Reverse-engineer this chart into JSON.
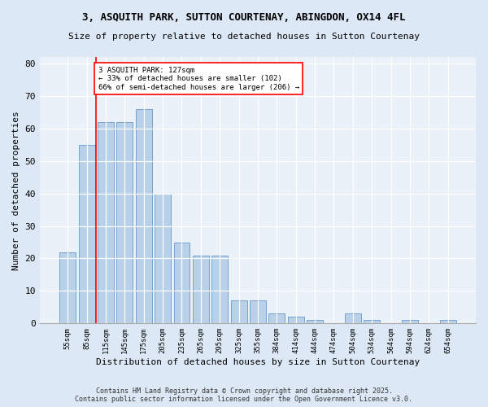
{
  "title1": "3, ASQUITH PARK, SUTTON COURTENAY, ABINGDON, OX14 4FL",
  "title2": "Size of property relative to detached houses in Sutton Courtenay",
  "xlabel": "Distribution of detached houses by size in Sutton Courtenay",
  "ylabel": "Number of detached properties",
  "categories": [
    "55sqm",
    "85sqm",
    "115sqm",
    "145sqm",
    "175sqm",
    "205sqm",
    "235sqm",
    "265sqm",
    "295sqm",
    "325sqm",
    "355sqm",
    "384sqm",
    "414sqm",
    "444sqm",
    "474sqm",
    "504sqm",
    "534sqm",
    "564sqm",
    "594sqm",
    "624sqm",
    "654sqm"
  ],
  "values": [
    22,
    55,
    62,
    62,
    66,
    40,
    25,
    21,
    21,
    7,
    7,
    3,
    2,
    1,
    0,
    3,
    1,
    0,
    1,
    0,
    1
  ],
  "bar_color": "#b8d0e8",
  "bar_edge_color": "#6699cc",
  "vline_x": 1.5,
  "annotation_text_line1": "3 ASQUITH PARK: 127sqm",
  "annotation_text_line2": "← 33% of detached houses are smaller (102)",
  "annotation_text_line3": "66% of semi-detached houses are larger (206) →",
  "ylim": [
    0,
    82
  ],
  "yticks": [
    0,
    10,
    20,
    30,
    40,
    50,
    60,
    70,
    80
  ],
  "footer1": "Contains HM Land Registry data © Crown copyright and database right 2025.",
  "footer2": "Contains public sector information licensed under the Open Government Licence v3.0.",
  "bg_color": "#dce8f5",
  "plot_bg_color": "#eaf1f8"
}
